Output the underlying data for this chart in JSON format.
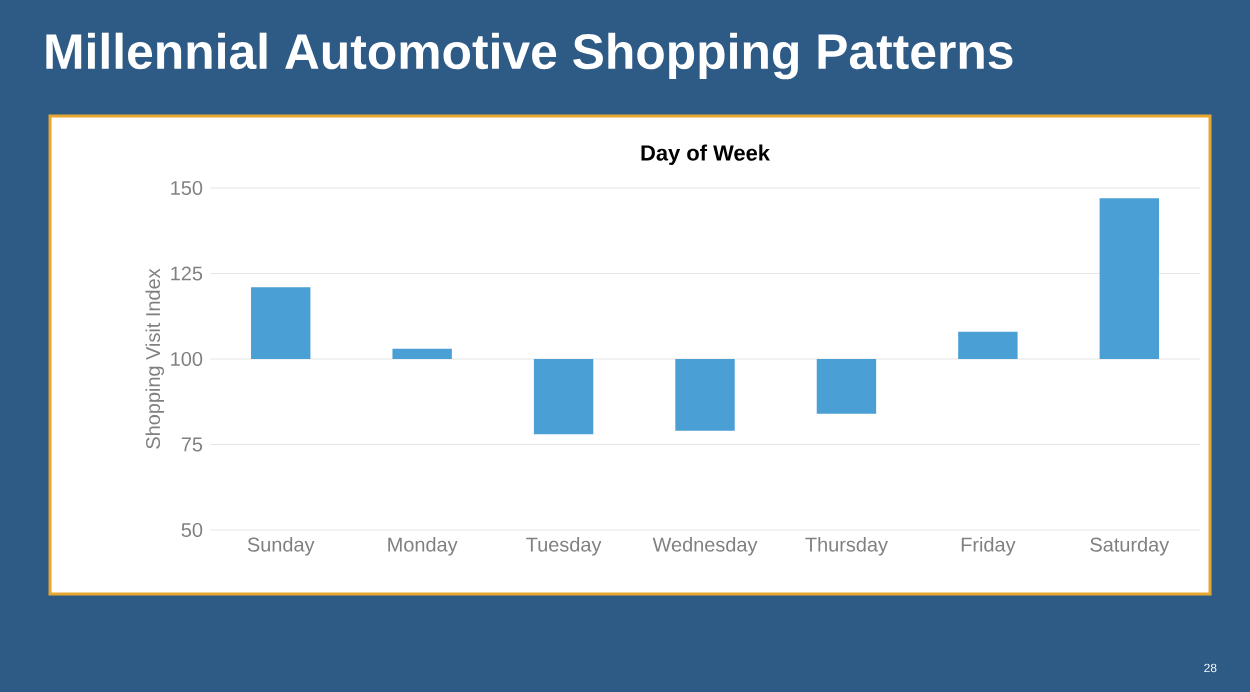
{
  "chart_data": {
    "type": "bar",
    "title": "Millennial Automotive Shopping Patterns",
    "subtitle": "Day of Week",
    "ylabel": "Shopping Visit Index",
    "categories": [
      "Sunday",
      "Monday",
      "Tuesday",
      "Wednesday",
      "Thursday",
      "Friday",
      "Saturday"
    ],
    "base": [
      100,
      100,
      100,
      100,
      100,
      100,
      100
    ],
    "values": [
      21,
      3,
      -22,
      -21,
      -16,
      8,
      47
    ],
    "color": "#4a9fd5",
    "ylim": [
      50,
      150
    ],
    "yticks": [
      50,
      75,
      100,
      125,
      150
    ],
    "grid": "y",
    "annotations": [
      "28"
    ]
  }
}
